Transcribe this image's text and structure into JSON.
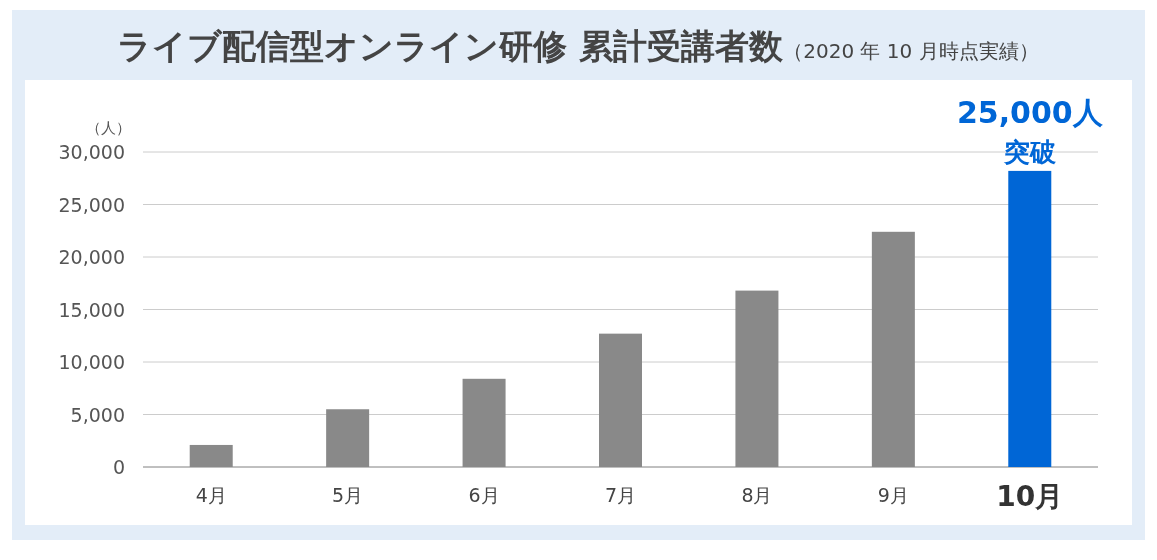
{
  "chart_data": {
    "type": "bar",
    "title": "ライブ配信型オンライン研修 累計受講者数",
    "subtitle": "（2020 年 10 月時点実績）",
    "ylabel": "（人）",
    "categories": [
      "4月",
      "5月",
      "6月",
      "7月",
      "8月",
      "9月",
      "10月"
    ],
    "values": [
      2100,
      5500,
      8400,
      12700,
      16800,
      22400,
      28200
    ],
    "colors": [
      "#898989",
      "#898989",
      "#898989",
      "#898989",
      "#898989",
      "#898989",
      "#0066d6"
    ],
    "ylim": [
      0,
      30000
    ],
    "yticks": [
      {
        "value": 0,
        "label": "0"
      },
      {
        "value": 5000,
        "label": "5,000"
      },
      {
        "value": 10000,
        "label": "10,000"
      },
      {
        "value": 15000,
        "label": "15,000"
      },
      {
        "value": 20000,
        "label": "20,000"
      },
      {
        "value": 25000,
        "label": "25,000"
      },
      {
        "value": 30000,
        "label": "30,000"
      }
    ],
    "grid": "y",
    "annotations": [
      {
        "text": "25,000人",
        "x": "10月",
        "y": 28200
      },
      {
        "text": "突破",
        "x": "10月",
        "y": 28200
      }
    ]
  }
}
